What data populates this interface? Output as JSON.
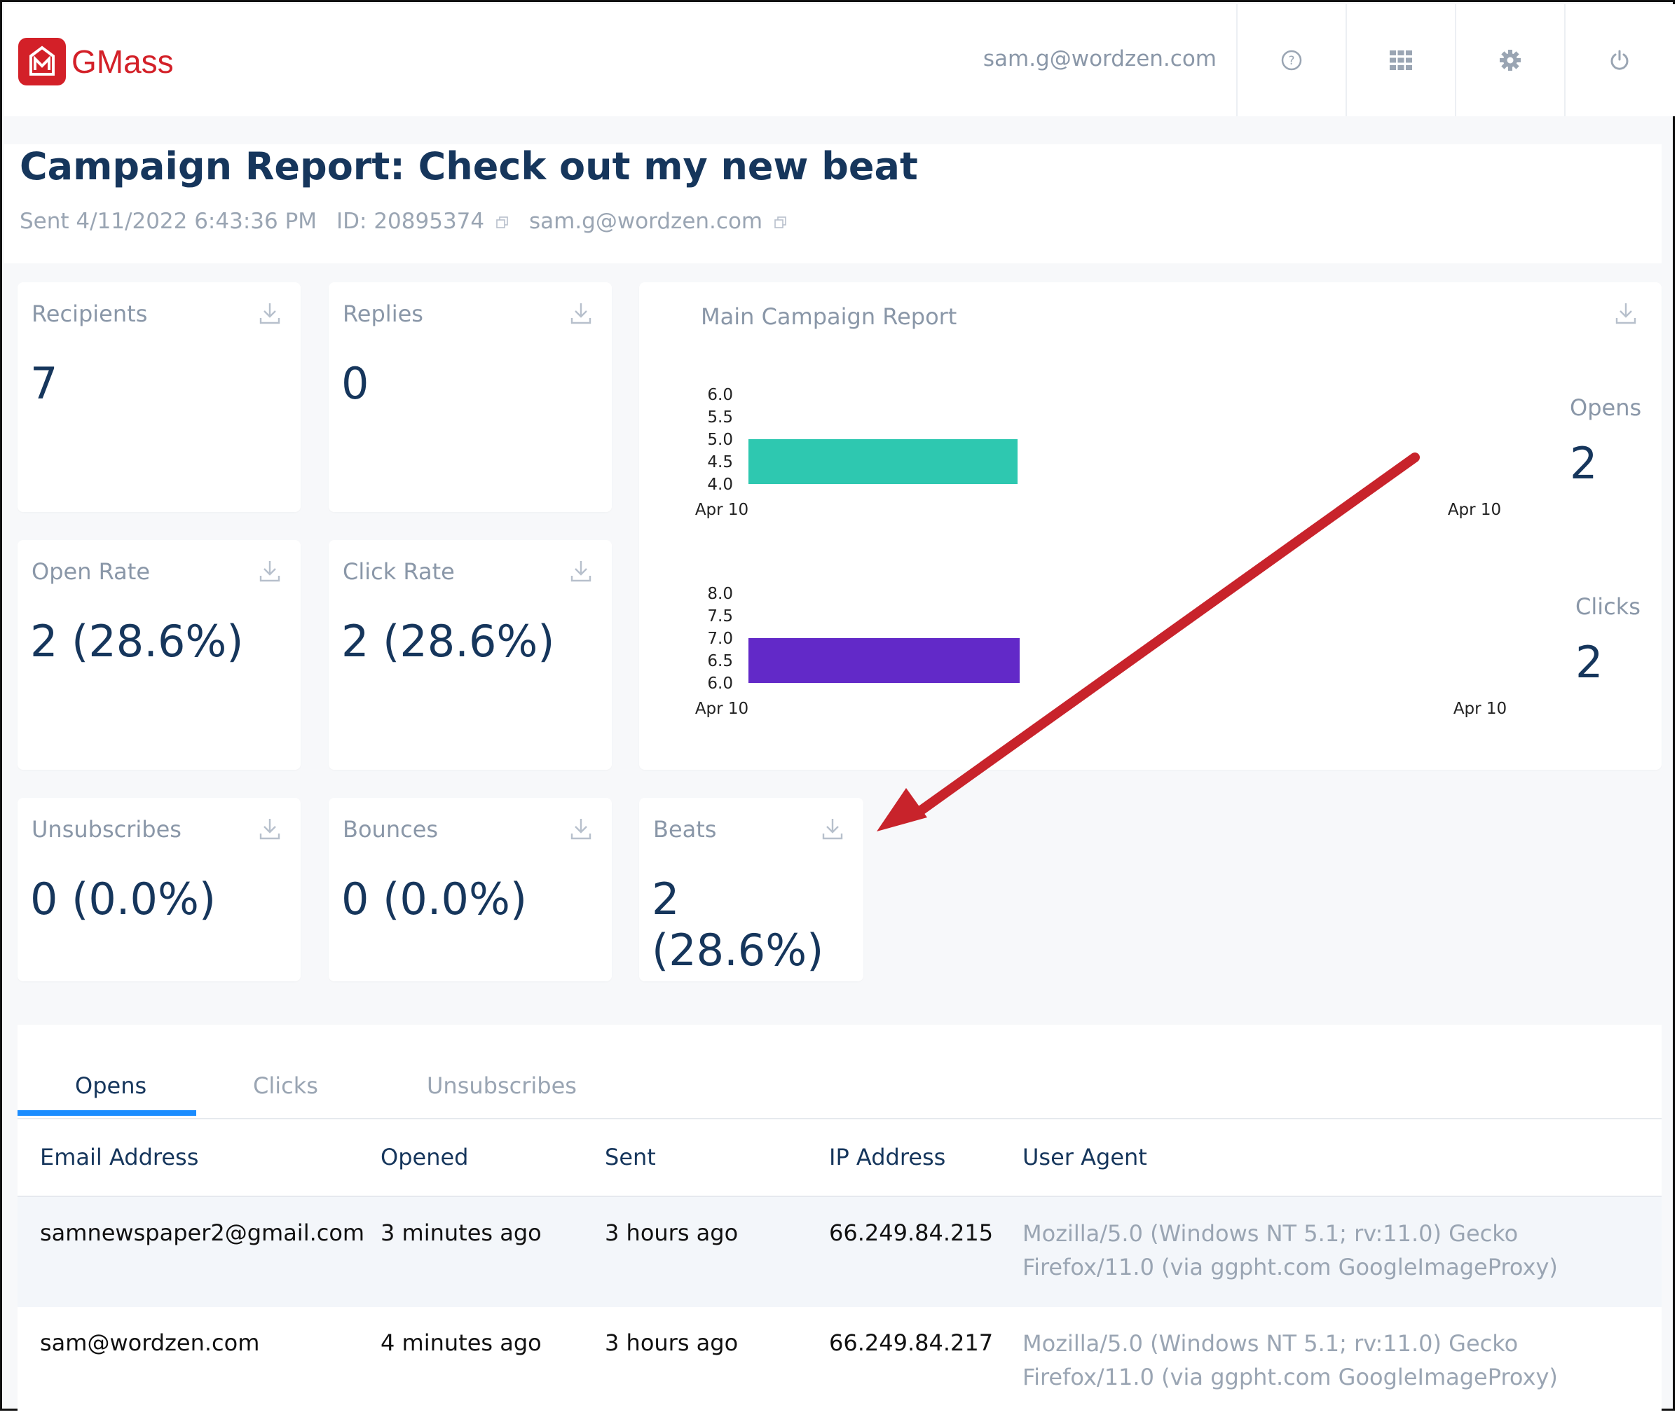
{
  "header": {
    "logo_text": "GMass",
    "user_email": "sam.g@wordzen.com",
    "icons": [
      "help-icon",
      "apps-grid-icon",
      "gear-icon",
      "power-icon"
    ]
  },
  "report": {
    "title": "Campaign Report: Check out my new beat",
    "sent": "Sent 4/11/2022 6:43:36 PM",
    "id": "ID: 20895374",
    "sender": "sam.g@wordzen.com"
  },
  "cards": {
    "recipients": {
      "label": "Recipients",
      "value": "7"
    },
    "replies": {
      "label": "Replies",
      "value": "0"
    },
    "open_rate": {
      "label": "Open Rate",
      "value": "2 (28.6%)"
    },
    "click_rate": {
      "label": "Click Rate",
      "value": "2 (28.6%)"
    },
    "unsubscribes": {
      "label": "Unsubscribes",
      "value": "0 (0.0%)"
    },
    "bounces": {
      "label": "Bounces",
      "value": "0 (0.0%)"
    },
    "beats": {
      "label": "Beats",
      "value": "2 (28.6%)"
    }
  },
  "chart": {
    "title": "Main Campaign Report",
    "opens": {
      "label": "Opens",
      "value": "2"
    },
    "clicks": {
      "label": "Clicks",
      "value": "2"
    }
  },
  "chart_data": [
    {
      "type": "bar",
      "orientation": "horizontal",
      "name": "Opens",
      "y_ticks": [
        "6.0",
        "5.5",
        "5.0",
        "4.5",
        "4.0"
      ],
      "x_ticks": [
        "Apr 10",
        "Apr 10"
      ],
      "bar": {
        "y_from": 4.0,
        "y_to": 5.0
      },
      "color": "#2ec8b0"
    },
    {
      "type": "bar",
      "orientation": "horizontal",
      "name": "Clicks",
      "y_ticks": [
        "8.0",
        "7.5",
        "7.0",
        "6.5",
        "6.0"
      ],
      "x_ticks": [
        "Apr 10",
        "Apr 10"
      ],
      "bar": {
        "y_from": 6.0,
        "y_to": 7.0
      },
      "color": "#6229c8"
    }
  ],
  "tabs": [
    {
      "label": "Opens",
      "active": true
    },
    {
      "label": "Clicks",
      "active": false
    },
    {
      "label": "Unsubscribes",
      "active": false
    }
  ],
  "table": {
    "columns": [
      "Email Address",
      "Opened",
      "Sent",
      "IP Address",
      "User Agent"
    ],
    "rows": [
      {
        "email": "samnewspaper2@gmail.com",
        "opened": "3 minutes ago",
        "sent": "3 hours ago",
        "ip": "66.249.84.215",
        "ua": "Mozilla/5.0 (Windows NT 5.1; rv:11.0) Gecko Firefox/11.0 (via ggpht.com GoogleImageProxy)"
      },
      {
        "email": "sam@wordzen.com",
        "opened": "4 minutes ago",
        "sent": "3 hours ago",
        "ip": "66.249.84.217",
        "ua": "Mozilla/5.0 (Windows NT 5.1; rv:11.0) Gecko Firefox/11.0 (via ggpht.com GoogleImageProxy)"
      }
    ]
  },
  "colors": {
    "brand": "#d32028",
    "text_dark": "#16365c",
    "muted": "#8a97a8",
    "opens_bar": "#2ec8b0",
    "clicks_bar": "#6229c8",
    "tab_accent": "#1a8cff",
    "annotation_arrow": "#c8232b"
  }
}
